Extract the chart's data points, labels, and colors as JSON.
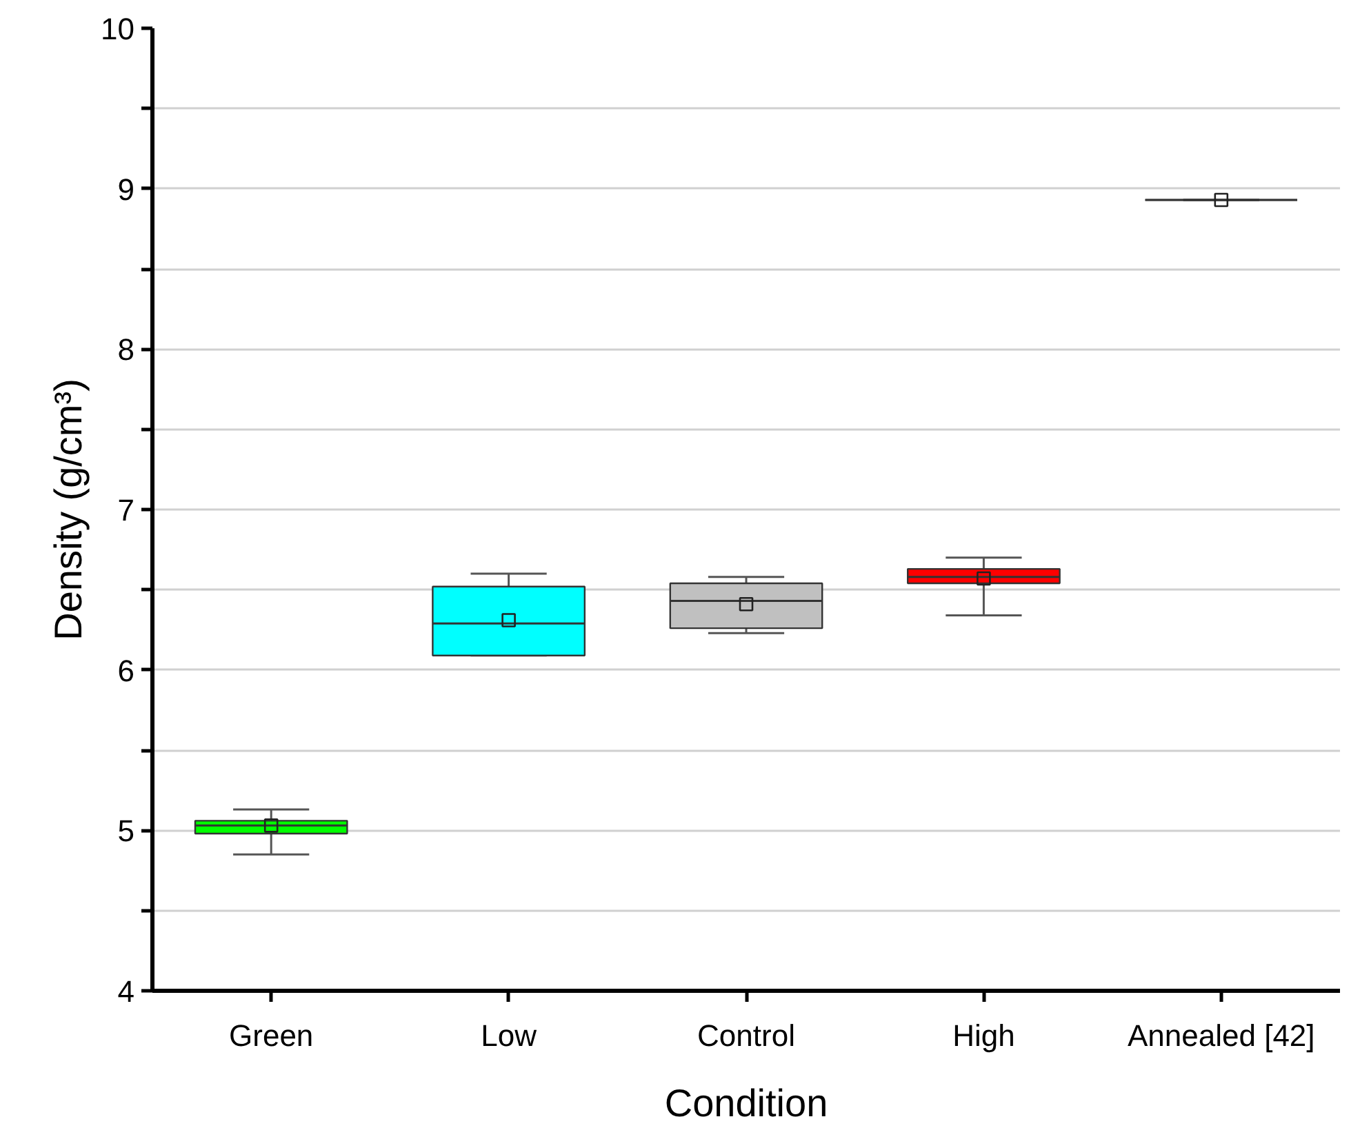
{
  "chart_data": {
    "type": "box",
    "xlabel": "Condition",
    "ylabel": "Density (g/cm³)",
    "categories": [
      "Green",
      "Low",
      "Control",
      "High",
      "Annealed [42]"
    ],
    "colors": [
      "#00ff00",
      "#00ffff",
      "#c0c0c0",
      "#ff0000",
      "#333333"
    ],
    "boxes": [
      {
        "low": 4.85,
        "q1": 4.98,
        "median": 5.03,
        "q3": 5.06,
        "high": 5.13,
        "mean": 5.03
      },
      {
        "low": 6.09,
        "q1": 6.09,
        "median": 6.29,
        "q3": 6.52,
        "high": 6.6,
        "mean": 6.31
      },
      {
        "low": 6.23,
        "q1": 6.26,
        "median": 6.43,
        "q3": 6.54,
        "high": 6.58,
        "mean": 6.41
      },
      {
        "low": 6.34,
        "q1": 6.54,
        "median": 6.58,
        "q3": 6.63,
        "high": 6.7,
        "mean": 6.57
      },
      {
        "low": 8.93,
        "q1": 8.93,
        "median": 8.93,
        "q3": 8.93,
        "high": 8.93,
        "mean": 8.93
      }
    ],
    "ylim": [
      4,
      10
    ],
    "yticks": [
      4,
      {
        "value": 4.5,
        "label": null
      },
      5,
      {
        "value": 5.5,
        "label": null
      },
      6,
      {
        "value": 6.5,
        "label": null
      },
      7,
      {
        "value": 7.5,
        "label": null
      },
      8,
      {
        "value": 8.5,
        "label": null
      },
      9,
      {
        "value": 9.5,
        "label": null
      },
      10
    ],
    "grid": "y",
    "marker": "square"
  }
}
